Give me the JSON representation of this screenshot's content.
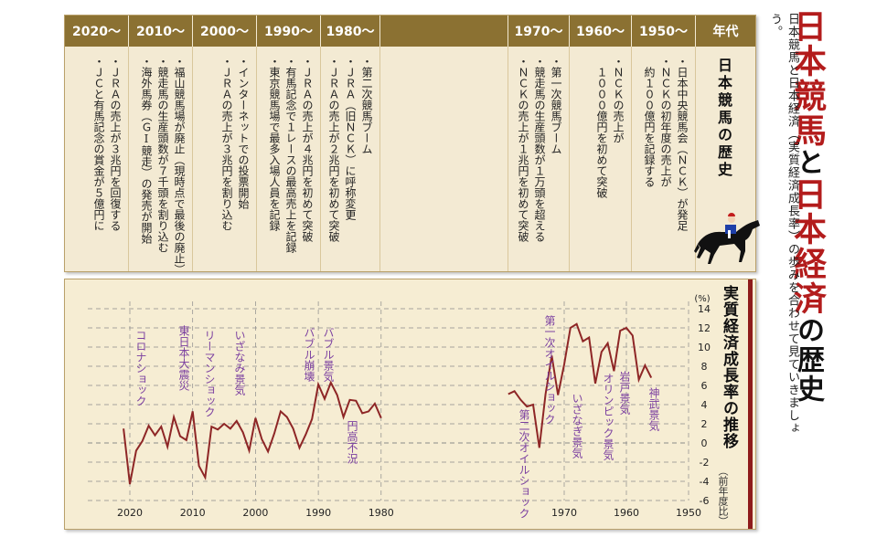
{
  "page": {
    "title_parts": [
      "日本競馬",
      "と",
      "日本経済",
      "の歴史"
    ],
    "subtitle": "日本競馬と日本経済（実質経済成長率）の歩みを合わせて見ていきましょう。"
  },
  "timeline": {
    "header_label": "年代",
    "title": "日本競馬の歴史",
    "columns": [
      {
        "era": "2020～",
        "entries": [
          "・ＪＲＡの売上が３兆円を回復する",
          "・ＪＣと有馬記念の賞金が５億円に"
        ]
      },
      {
        "era": "2010～",
        "entries": [
          "・福山競馬場が廃止（現時点で最後の廃止）",
          "・競走馬の生産頭数が７千頭を割り込む",
          "・海外馬券（ＧⅠ競走）の発売が開始"
        ]
      },
      {
        "era": "2000～",
        "entries": [
          "・インターネットでの投票開始",
          "・ＪＲＡの売上が３兆円を割り込む"
        ]
      },
      {
        "era": "1990～",
        "entries": [
          "・ＪＲＡの売上が４兆円を初めて突破",
          "・有馬記念で１レースの最高売上を記録",
          "・東京競馬場で最多入場人員を記録"
        ]
      },
      {
        "era": "1980～",
        "entries": [
          "・第二次競馬ブーム",
          "・ＪＲＡ（旧ＮＣＫ）に呼称変更",
          "・ＪＲＡの売上が２兆円を初めて突破"
        ]
      },
      {
        "era": "",
        "entries": []
      },
      {
        "era": "1970～",
        "entries": [
          "・第一次競馬ブーム",
          "・競走馬の生産頭数が１万頭を超える",
          "・ＮＣＫの売上が１兆円を初めて突破"
        ]
      },
      {
        "era": "1960～",
        "entries": [
          "・ＮＣＫの売上が",
          "　１０００億円を初めて突破"
        ]
      },
      {
        "era": "1950～",
        "entries": [
          "・日本中央競馬会（ＮＣＫ）が発足",
          "・ＮＣＫの初年度の売上が",
          "　約１００億円を記録する"
        ]
      }
    ]
  },
  "chart": {
    "title": "実質経済成長率の推移",
    "unit": "(%)",
    "note": "（前年度比）",
    "colors": {
      "line": "#8e2626",
      "grid": "#8a8a8a",
      "label_purple": "#7b3fa0"
    },
    "y_ticks": [
      14,
      12,
      10,
      8,
      6,
      4,
      2,
      0,
      -2,
      -4,
      -6
    ],
    "x_ticks": [
      "2020",
      "2010",
      "2000",
      "1990",
      "1980",
      "1970",
      "1960",
      "1950"
    ],
    "annotations": [
      "コロナショック",
      "東日本大震災",
      "リーマンショック",
      "いざなみ景気",
      "バブル崩壊",
      "バブル景気",
      "円高不況",
      "第一次オイルショック",
      "第二次オイルショック",
      "いざなぎ景気",
      "オリンピック景気",
      "岩戸景気",
      "神武景気"
    ]
  },
  "chart_data": {
    "type": "line",
    "ylabel": "(%)",
    "ylim": [
      -6,
      14
    ],
    "xlim": [
      1950,
      2023
    ],
    "axis_break": [
      1980,
      1970
    ],
    "series": [
      {
        "x": [
          1956,
          1957,
          1958,
          1959,
          1960,
          1961,
          1962,
          1963,
          1964,
          1965,
          1966,
          1967,
          1968,
          1969,
          1970,
          1971,
          1972,
          1973,
          1974,
          1975,
          1976,
          1977,
          1978,
          1979,
          1980,
          1981,
          1982,
          1983,
          1984,
          1985,
          1986,
          1987,
          1988,
          1989,
          1990,
          1991,
          1992,
          1993,
          1994,
          1995,
          1996,
          1997,
          1998,
          1999,
          2000,
          2001,
          2002,
          2003,
          2004,
          2005,
          2006,
          2007,
          2008,
          2009,
          2010,
          2011,
          2012,
          2013,
          2014,
          2015,
          2016,
          2017,
          2018,
          2019,
          2020,
          2021
        ],
        "values": [
          6.8,
          8.1,
          6.6,
          11.2,
          12.0,
          11.7,
          7.5,
          10.4,
          9.5,
          6.2,
          11.0,
          10.6,
          12.4,
          12.0,
          8.2,
          5.0,
          9.1,
          5.1,
          -0.5,
          4.0,
          3.8,
          4.5,
          5.4,
          5.1,
          2.6,
          4.1,
          3.3,
          3.1,
          4.4,
          4.5,
          2.7,
          5.0,
          6.3,
          4.6,
          6.1,
          2.5,
          0.9,
          -0.5,
          1.5,
          2.7,
          3.3,
          1.0,
          -0.9,
          0.4,
          2.6,
          -0.8,
          1.1,
          2.3,
          1.5,
          2.0,
          1.4,
          1.7,
          -3.6,
          -2.4,
          3.3,
          0.3,
          0.7,
          2.7,
          -0.4,
          1.7,
          0.8,
          1.8,
          0.2,
          -0.8,
          -4.3,
          1.5
        ]
      }
    ]
  }
}
